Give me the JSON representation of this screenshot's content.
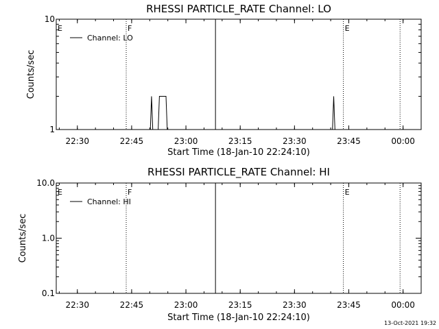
{
  "chart_data": [
    {
      "type": "line",
      "title": "RHESSI PARTICLE_RATE Channel: LO",
      "xlabel": "Start Time (18-Jan-10 22:24:10)",
      "ylabel": "Counts/sec",
      "yscale": "log",
      "ylim": [
        1,
        10
      ],
      "ytick_labels": [
        "1",
        "10"
      ],
      "ytick_values": [
        1,
        10
      ],
      "xlim": [
        "22:24:10",
        "00:05:00"
      ],
      "xtick_labels": [
        "22:30",
        "22:45",
        "23:00",
        "23:15",
        "23:30",
        "23:45",
        "00:00"
      ],
      "legend": {
        "location": "top-left",
        "entries": [
          "Channel: LO"
        ]
      },
      "series": [
        {
          "name": "Channel: LO",
          "x": [
            "22:50:10",
            "22:50:30",
            "22:50:50",
            "22:51:10",
            "22:51:30",
            "22:52:20",
            "22:52:40",
            "22:53:00",
            "22:54:10",
            "22:54:30",
            "22:54:50",
            "23:40:30",
            "23:40:50",
            "23:41:10"
          ],
          "y": [
            1,
            2,
            1,
            1,
            1,
            1,
            2,
            2,
            2,
            2,
            1,
            1,
            2,
            1
          ]
        }
      ],
      "annotations": [
        {
          "text": "E",
          "time": "22:24:10",
          "line": "none"
        },
        {
          "text": "F",
          "time": "22:43:30",
          "line": "dotted"
        },
        {
          "text": "",
          "time": "23:08:10",
          "line": "solid"
        },
        {
          "text": "E",
          "time": "23:43:30",
          "line": "dotted"
        },
        {
          "text": "",
          "time": "23:59:10",
          "line": "dotted"
        }
      ]
    },
    {
      "type": "line",
      "title": "RHESSI PARTICLE_RATE Channel: HI",
      "xlabel": "Start Time (18-Jan-10 22:24:10)",
      "ylabel": "Counts/sec",
      "yscale": "log",
      "ylim": [
        0.1,
        10
      ],
      "ytick_labels": [
        "0.1",
        "1.0",
        "10.0"
      ],
      "ytick_values": [
        0.1,
        1,
        10
      ],
      "xlim": [
        "22:24:10",
        "00:05:00"
      ],
      "xtick_labels": [
        "22:30",
        "22:45",
        "23:00",
        "23:15",
        "23:30",
        "23:45",
        "00:00"
      ],
      "legend": {
        "location": "top-left",
        "entries": [
          "Channel: HI"
        ]
      },
      "series": [
        {
          "name": "Channel: HI",
          "x": [],
          "y": []
        }
      ],
      "annotations": [
        {
          "text": "E",
          "time": "22:24:10",
          "line": "none"
        },
        {
          "text": "F",
          "time": "22:43:30",
          "line": "dotted"
        },
        {
          "text": "",
          "time": "23:08:10",
          "line": "solid"
        },
        {
          "text": "E",
          "time": "23:43:30",
          "line": "dotted"
        },
        {
          "text": "",
          "time": "23:59:10",
          "line": "dotted"
        }
      ]
    }
  ],
  "footer": {
    "timestamp": "13-Oct-2021 19:32"
  }
}
